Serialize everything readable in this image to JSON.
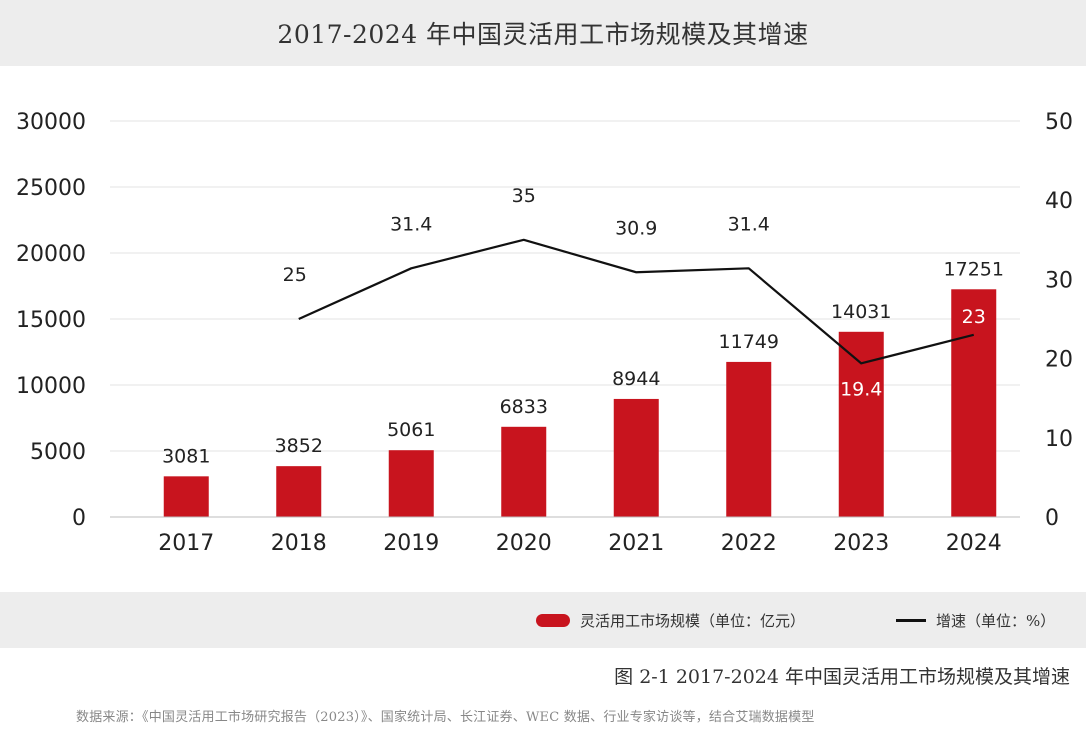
{
  "title": "2017-2024 年中国灵活用工市场规模及其增速",
  "colors": {
    "bar": "#c8141e",
    "line": "#111111",
    "grid": "#e3e3e3",
    "panel_bg": "#ededed"
  },
  "chart_data": {
    "type": "bar",
    "title": "2017-2024 年中国灵活用工市场规模及其增速",
    "categories": [
      "2017",
      "2018",
      "2019",
      "2020",
      "2021",
      "2022",
      "2023",
      "2024"
    ],
    "series": [
      {
        "name": "灵活用工市场规模（单位：亿元）",
        "type": "bar",
        "axis": "left",
        "values": [
          3081,
          3852,
          5061,
          6833,
          8944,
          11749,
          14031,
          17251
        ],
        "labels": [
          "3081",
          "3852",
          "5061",
          "6833",
          "8944",
          "11749",
          "14031",
          "17251"
        ]
      },
      {
        "name": "增速（单位：%）",
        "type": "line",
        "axis": "right",
        "values": [
          null,
          25,
          31.4,
          35,
          30.9,
          31.4,
          19.4,
          23
        ],
        "labels": [
          "",
          "25",
          "31.4",
          "35",
          "30.9",
          "31.4",
          "19.4",
          "23"
        ]
      }
    ],
    "y_left": {
      "min": 0,
      "max": 30000,
      "ticks": [
        0,
        5000,
        10000,
        15000,
        20000,
        25000,
        30000
      ],
      "tick_labels": [
        "0",
        "5000",
        "10000",
        "15000",
        "20000",
        "25000",
        "30000"
      ]
    },
    "y_right": {
      "min": 0,
      "max": 50,
      "ticks": [
        0,
        10,
        20,
        30,
        40,
        50
      ],
      "tick_labels": [
        "0",
        "10",
        "20",
        "30",
        "40",
        "50"
      ]
    },
    "xlabel": "",
    "ylabel": "",
    "grid": true,
    "legend": "bottom-right"
  },
  "legend": {
    "bar_label": "灵活用工市场规模（单位：亿元）",
    "line_label": "增速（单位：%）"
  },
  "caption": "图 2-1 2017-2024 年中国灵活用工市场规模及其增速",
  "source": "数据来源：《中国灵活用工市场研究报告（2023）》、国家统计局、长江证券、WEC 数据、行业专家访谈等，结合艾瑞数据模型"
}
